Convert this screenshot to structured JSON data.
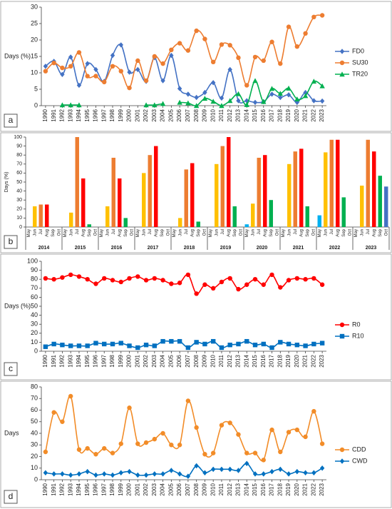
{
  "chart_data": [
    {
      "type": "line",
      "panel_label": "a",
      "ylabel": "Days (%)",
      "categories": [
        "1990",
        "1991",
        "1992",
        "1993",
        "1994",
        "1995",
        "1996",
        "1997",
        "1998",
        "1999",
        "2000",
        "2001",
        "2002",
        "2003",
        "2004",
        "2005",
        "2006",
        "2007",
        "2008",
        "2009",
        "2010",
        "2011",
        "2012",
        "2013",
        "2014",
        "2015",
        "2016",
        "2017",
        "2018",
        "2019",
        "2020",
        "2021",
        "2022",
        "2023"
      ],
      "ylim": [
        0,
        30
      ],
      "yticks": [
        0,
        5,
        10,
        15,
        20,
        25,
        30
      ],
      "legend": "right",
      "series": [
        {
          "name": "FD0",
          "color": "#4472c4",
          "marker": "diamond",
          "values": [
            12,
            13.5,
            9.5,
            14.8,
            6.2,
            12.8,
            11,
            7.4,
            15.3,
            18.5,
            10.2,
            11,
            7.4,
            14.6,
            7.6,
            15.3,
            5.2,
            3.5,
            2.5,
            4,
            7,
            2.3,
            11,
            1.5,
            1.5,
            1,
            1.2,
            3.5,
            2.5,
            3.3,
            1,
            4,
            1.5,
            1.4
          ]
        },
        {
          "name": "SU30",
          "color": "#ed7d31",
          "marker": "circle",
          "values": [
            10.5,
            13,
            11.5,
            12,
            16.2,
            9,
            9,
            7.2,
            12,
            10.5,
            5.4,
            13.7,
            7.6,
            15,
            12.8,
            17,
            19,
            16.8,
            22.8,
            20.3,
            13.3,
            18.6,
            18.4,
            14.6,
            6.2,
            14.8,
            13.7,
            19.4,
            12.8,
            24,
            18,
            22,
            27,
            27.5
          ]
        },
        {
          "name": "TR20",
          "color": "#00b050",
          "marker": "triangle",
          "values": [
            null,
            null,
            0.2,
            0.2,
            0.2,
            null,
            null,
            null,
            null,
            null,
            null,
            null,
            0.2,
            0.2,
            0.6,
            null,
            1,
            0.8,
            0,
            2.2,
            1.3,
            0,
            1.5,
            3.6,
            0.3,
            7.6,
            1.2,
            5.2,
            3.7,
            5.3,
            2,
            3,
            7.4,
            6
          ]
        }
      ]
    },
    {
      "type": "bar",
      "panel_label": "b",
      "ylabel": "Days (%)",
      "categories": [
        "2014",
        "2015",
        "2016",
        "2017",
        "2018",
        "2019",
        "2020",
        "2021",
        "2022",
        "2023"
      ],
      "ylim": [
        0,
        100
      ],
      "yticks": [
        0,
        10,
        20,
        30,
        40,
        50,
        60,
        70,
        80,
        90,
        100
      ],
      "series": [
        {
          "name": "May",
          "color": "#00b0f0",
          "values": [
            null,
            null,
            null,
            null,
            null,
            null,
            3,
            null,
            13,
            null
          ]
        },
        {
          "name": "Jun",
          "color": "#ffc000",
          "values": [
            23,
            16,
            23,
            60,
            10,
            70,
            26,
            70,
            83,
            46
          ]
        },
        {
          "name": "Jul",
          "color": "#ed7d31",
          "values": [
            25,
            100,
            77,
            80,
            64,
            90,
            77,
            84,
            97,
            97
          ]
        },
        {
          "name": "Aug",
          "color": "#ff0000",
          "values": [
            25,
            54,
            54,
            90,
            71,
            100,
            80,
            87,
            97,
            84
          ]
        },
        {
          "name": "Sep",
          "color": "#00b050",
          "values": [
            null,
            3,
            10,
            null,
            6,
            23,
            30,
            23,
            33,
            57
          ]
        },
        {
          "name": "Oct",
          "color": "#4472c4",
          "values": [
            null,
            null,
            null,
            null,
            null,
            null,
            null,
            null,
            null,
            45
          ]
        }
      ]
    },
    {
      "type": "line",
      "panel_label": "c",
      "ylabel": "Days (%)",
      "categories": [
        "1990",
        "1991",
        "1992",
        "1993",
        "1994",
        "1995",
        "1996",
        "1997",
        "1998",
        "1999",
        "2000",
        "2001",
        "2002",
        "2003",
        "2004",
        "2005",
        "2006",
        "2007",
        "2008",
        "2009",
        "2010",
        "2011",
        "2012",
        "2013",
        "2014",
        "2015",
        "2016",
        "2017",
        "2018",
        "2019",
        "2020",
        "2021",
        "2022",
        "2023"
      ],
      "ylim": [
        0,
        100
      ],
      "yticks": [
        0,
        10,
        20,
        30,
        40,
        50,
        60,
        70,
        80,
        90,
        100
      ],
      "legend": "right",
      "series": [
        {
          "name": "R0",
          "color": "#ff0000",
          "marker": "circle",
          "values": [
            81,
            80,
            82,
            85,
            83,
            80,
            75,
            81,
            79,
            77,
            81,
            83,
            79,
            81,
            79,
            75,
            76,
            85,
            64,
            74,
            70,
            77,
            81,
            69,
            74,
            80,
            74,
            85,
            71,
            79,
            81,
            80,
            81,
            74
          ]
        },
        {
          "name": "R10",
          "color": "#0070c0",
          "marker": "square",
          "values": [
            5,
            8,
            7,
            6,
            6,
            6,
            9,
            8,
            8,
            9,
            6,
            4,
            7,
            6,
            11,
            11,
            11,
            4,
            10,
            8,
            11,
            4,
            7,
            8,
            11,
            7,
            8,
            4,
            10,
            8,
            7,
            6,
            8,
            9
          ]
        }
      ]
    },
    {
      "type": "line",
      "panel_label": "d",
      "ylabel": "Days",
      "categories": [
        "1990",
        "1991",
        "1992",
        "1993",
        "1994",
        "1995",
        "1996",
        "1997",
        "1998",
        "1999",
        "2000",
        "2001",
        "2002",
        "2003",
        "2004",
        "2005",
        "2006",
        "2007",
        "2008",
        "2009",
        "2010",
        "2011",
        "2012",
        "2013",
        "2014",
        "2015",
        "2016",
        "2017",
        "2018",
        "2019",
        "2020",
        "2021",
        "2022",
        "2023"
      ],
      "ylim": [
        0,
        80
      ],
      "yticks": [
        0,
        10,
        20,
        30,
        40,
        50,
        60,
        70,
        80
      ],
      "legend": "right",
      "series": [
        {
          "name": "CDD",
          "color": "#f28c28",
          "marker": "circle",
          "values": [
            24,
            58,
            50,
            72,
            26,
            27,
            22,
            27,
            23,
            31,
            62,
            31,
            32,
            35,
            40,
            30,
            30,
            68,
            45,
            22,
            23,
            47,
            49,
            39,
            23,
            23,
            17,
            43,
            24,
            41,
            43,
            37,
            59,
            31
          ]
        },
        {
          "name": "CWD",
          "color": "#0070c0",
          "marker": "diamond",
          "values": [
            6,
            5,
            5,
            4,
            5,
            7,
            4,
            5,
            4,
            6,
            7,
            4,
            4,
            5,
            5,
            8,
            5,
            3,
            12,
            6,
            9,
            9,
            9,
            8,
            14,
            5,
            5,
            7,
            9,
            5,
            7,
            6,
            6,
            10
          ]
        }
      ]
    }
  ]
}
